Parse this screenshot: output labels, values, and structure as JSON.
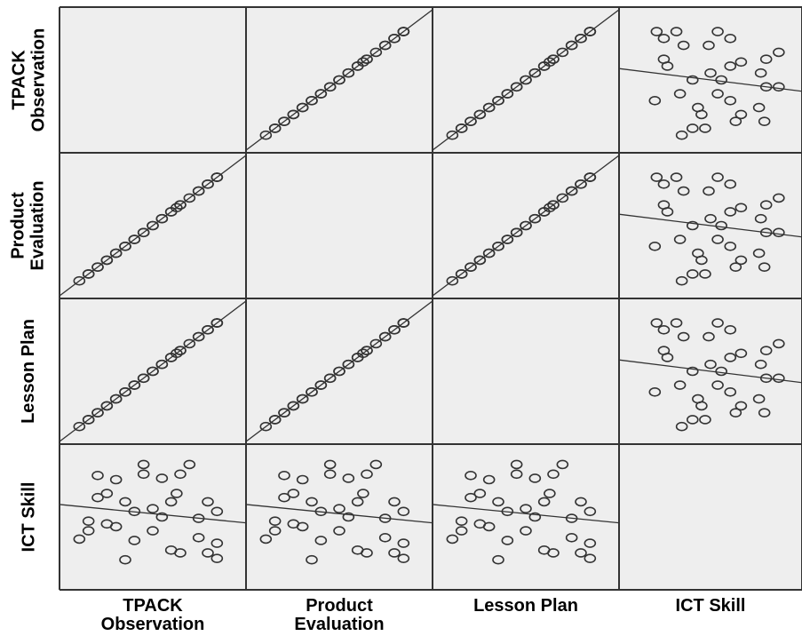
{
  "colors": {
    "panel_bg": "#eeeeee",
    "border": "#333333",
    "marker": "#333333",
    "fit_line": "#333333"
  },
  "chart_data": {
    "type": "scatter",
    "subtype": "scatterplot-matrix",
    "variables": [
      {
        "label": "TPACK\nObservation"
      },
      {
        "label": "Product\nEvaluation"
      },
      {
        "label": "Lesson Plan"
      },
      {
        "label": "ICT Skill"
      }
    ],
    "ranges": [
      [
        1,
        10
      ],
      [
        1,
        10
      ],
      [
        1,
        10
      ],
      [
        1,
        10
      ]
    ],
    "observations": [
      [
        1.5,
        1.5,
        1.5,
        3.9
      ],
      [
        2.0,
        2.0,
        2.0,
        4.5
      ],
      [
        2.5,
        2.5,
        2.5,
        6.9
      ],
      [
        3.5,
        3.5,
        3.5,
        4.8
      ],
      [
        4.5,
        4.5,
        4.5,
        3.8
      ],
      [
        5.5,
        5.5,
        5.5,
        6.1
      ],
      [
        6.8,
        6.8,
        6.8,
        7.2
      ],
      [
        8.0,
        8.0,
        8.0,
        5.4
      ],
      [
        9.0,
        9.0,
        9.0,
        2.5
      ],
      [
        3.0,
        3.0,
        3.0,
        7.2
      ],
      [
        6.5,
        6.5,
        6.5,
        6.6
      ],
      [
        3.5,
        3.5,
        3.5,
        8.2
      ],
      [
        5.0,
        5.0,
        5.0,
        8.6
      ],
      [
        6.0,
        6.0,
        6.0,
        8.3
      ],
      [
        2.0,
        2.0,
        2.0,
        5.2
      ],
      [
        4.5,
        4.5,
        4.5,
        5.9
      ],
      [
        7.5,
        7.5,
        7.5,
        9.3
      ],
      [
        6.0,
        6.0,
        6.0,
        5.5
      ],
      [
        5.0,
        5.0,
        5.0,
        9.3
      ],
      [
        7.0,
        7.0,
        7.0,
        2.9
      ],
      [
        8.5,
        8.5,
        8.5,
        6.6
      ],
      [
        3.0,
        3.0,
        3.0,
        5.0
      ],
      [
        9.0,
        9.0,
        9.0,
        5.9
      ],
      [
        5.5,
        5.5,
        5.5,
        4.5
      ],
      [
        8.0,
        8.0,
        8.0,
        4.0
      ],
      [
        4.0,
        4.0,
        4.0,
        2.4
      ],
      [
        2.5,
        2.5,
        2.5,
        8.5
      ],
      [
        7.0,
        7.0,
        7.0,
        8.6
      ],
      [
        6.5,
        6.5,
        6.5,
        3.1
      ],
      [
        9.0,
        9.0,
        9.0,
        3.6
      ],
      [
        4.0,
        4.0,
        4.0,
        6.6
      ],
      [
        8.5,
        8.5,
        8.5,
        2.9
      ]
    ],
    "diagonal_empty": true,
    "fit_line": true,
    "grid": false,
    "legend": "none"
  }
}
